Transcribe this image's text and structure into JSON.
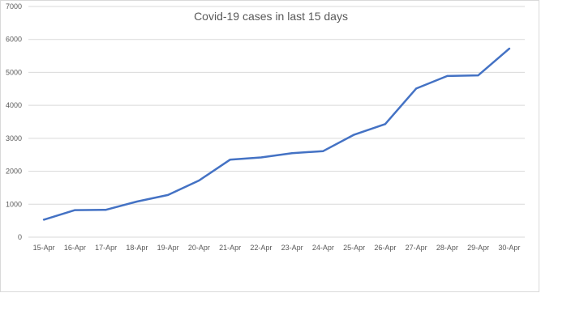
{
  "chart_data": {
    "type": "line",
    "title": "Covid-19 cases in last 15 days",
    "xlabel": "",
    "ylabel": "",
    "categories": [
      "15-Apr",
      "16-Apr",
      "17-Apr",
      "18-Apr",
      "19-Apr",
      "20-Apr",
      "21-Apr",
      "22-Apr",
      "23-Apr",
      "24-Apr",
      "25-Apr",
      "26-Apr",
      "27-Apr",
      "28-Apr",
      "29-Apr",
      "30-Apr"
    ],
    "series": [
      {
        "values": [
          530,
          820,
          830,
          1080,
          1280,
          1720,
          2350,
          2420,
          2550,
          2610,
          3110,
          3430,
          4510,
          4890,
          4910,
          5720
        ]
      }
    ],
    "ylim": [
      0,
      7000
    ],
    "yticks": [
      0,
      1000,
      2000,
      3000,
      4000,
      5000,
      6000,
      7000
    ],
    "grid": true,
    "legend": "none",
    "colors": {
      "line": "#4472c4",
      "grid": "#d9d9d9",
      "text": "#595959"
    }
  }
}
